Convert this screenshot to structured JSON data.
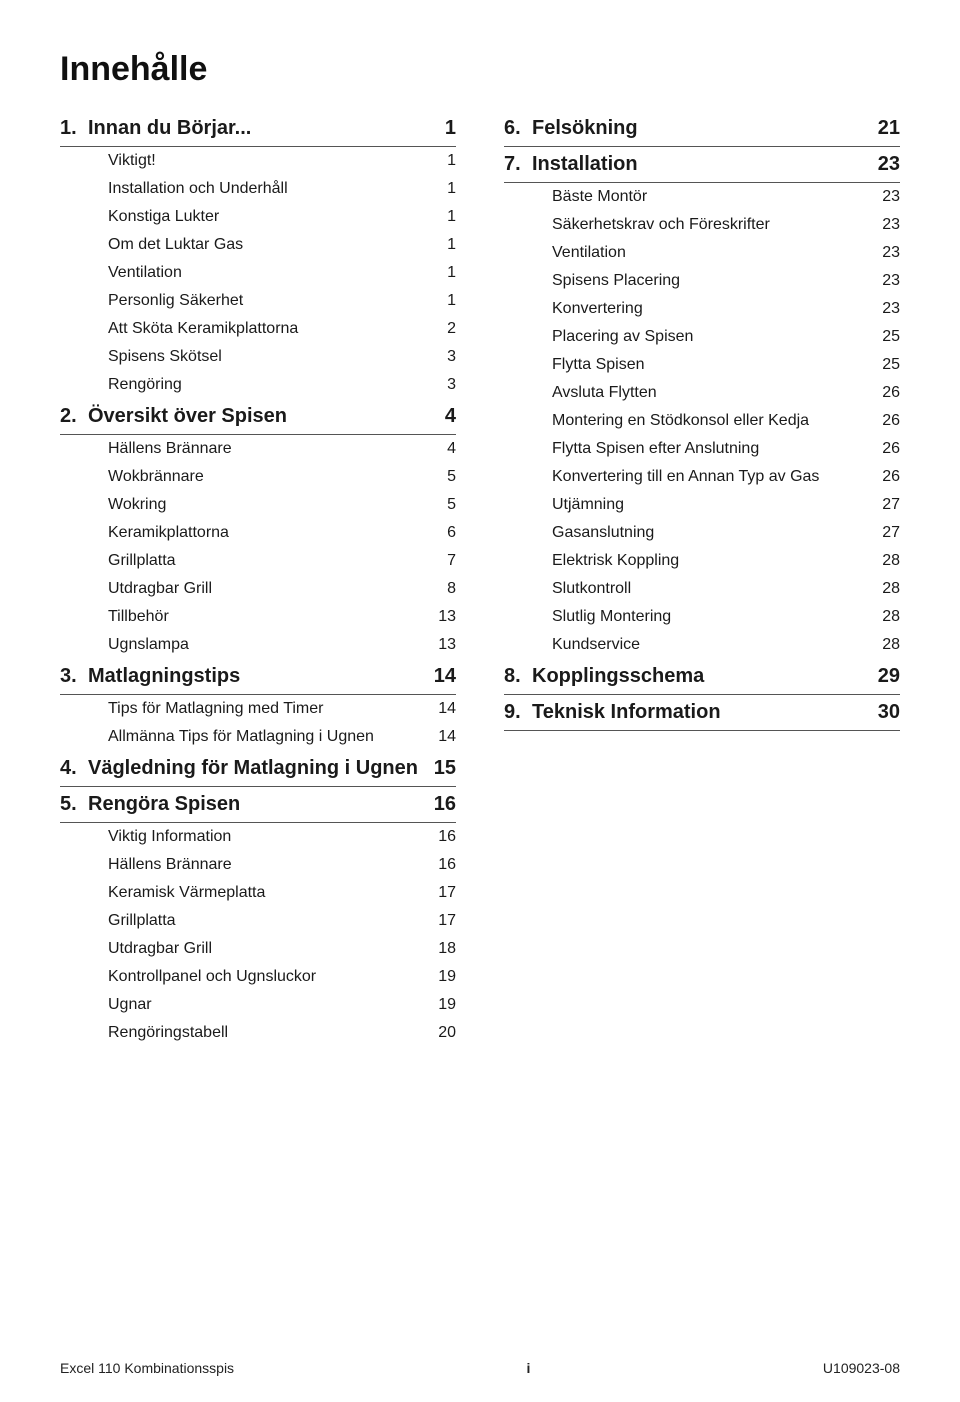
{
  "title": "Innehålle",
  "left": {
    "sections": [
      {
        "num": "1.",
        "label": "Innan du Börjar...",
        "page": "1",
        "items": [
          {
            "label": "Viktigt!",
            "page": "1"
          },
          {
            "label": "Installation och Underhåll",
            "page": "1"
          },
          {
            "label": "Konstiga Lukter",
            "page": "1"
          },
          {
            "label": "Om det Luktar Gas",
            "page": "1"
          },
          {
            "label": "Ventilation",
            "page": "1"
          },
          {
            "label": "Personlig Säkerhet",
            "page": "1"
          },
          {
            "label": "Att Sköta Keramikplattorna",
            "page": "2"
          },
          {
            "label": "Spisens Skötsel",
            "page": "3"
          },
          {
            "label": "Rengöring",
            "page": "3"
          }
        ]
      },
      {
        "num": "2.",
        "label": "Översikt över Spisen",
        "page": "4",
        "items": [
          {
            "label": "Hällens Brännare",
            "page": "4"
          },
          {
            "label": "Wokbrännare",
            "page": "5"
          },
          {
            "label": "Wokring",
            "page": "5"
          },
          {
            "label": "Keramikplattorna",
            "page": "6"
          },
          {
            "label": "Grillplatta",
            "page": "7"
          },
          {
            "label": "Utdragbar Grill",
            "page": "8"
          },
          {
            "label": "Tillbehör",
            "page": "13"
          },
          {
            "label": "Ugnslampa",
            "page": "13"
          }
        ]
      },
      {
        "num": "3.",
        "label": "Matlagningstips",
        "page": "14",
        "items": [
          {
            "label": "Tips för Matlagning med Timer",
            "page": "14"
          },
          {
            "label": "Allmänna Tips för Matlagning i Ugnen",
            "page": "14"
          }
        ]
      },
      {
        "num": "4.",
        "label": "Vägledning för Matlagning i Ugnen",
        "page": "15",
        "items": []
      },
      {
        "num": "5.",
        "label": "Rengöra Spisen",
        "page": "16",
        "items": [
          {
            "label": "Viktig Information",
            "page": "16"
          },
          {
            "label": "Hällens Brännare",
            "page": "16"
          },
          {
            "label": "Keramisk Värmeplatta",
            "page": "17"
          },
          {
            "label": "Grillplatta",
            "page": "17"
          },
          {
            "label": "Utdragbar Grill",
            "page": "18"
          },
          {
            "label": "Kontrollpanel och Ugnsluckor",
            "page": "19"
          },
          {
            "label": "Ugnar",
            "page": "19"
          },
          {
            "label": "Rengöringstabell",
            "page": "20"
          }
        ]
      }
    ]
  },
  "right": {
    "sections": [
      {
        "num": "6.",
        "label": "Felsökning",
        "page": "21",
        "items": []
      },
      {
        "num": "7.",
        "label": "Installation",
        "page": "23",
        "items": [
          {
            "label": "Bäste Montör",
            "page": "23"
          },
          {
            "label": "Säkerhetskrav och Föreskrifter",
            "page": "23"
          },
          {
            "label": "Ventilation",
            "page": "23"
          },
          {
            "label": "Spisens Placering",
            "page": "23"
          },
          {
            "label": "Konvertering",
            "page": "23"
          },
          {
            "label": "Placering av Spisen",
            "page": "25"
          },
          {
            "label": "Flytta Spisen",
            "page": "25"
          },
          {
            "label": "Avsluta Flytten",
            "page": "26"
          },
          {
            "label": "Montering en Stödkonsol eller Kedja",
            "page": "26"
          },
          {
            "label": "Flytta Spisen efter Anslutning",
            "page": "26"
          },
          {
            "label": "Konvertering till en Annan Typ av Gas",
            "page": "26"
          },
          {
            "label": "Utjämning",
            "page": "27"
          },
          {
            "label": "Gasanslutning",
            "page": "27"
          },
          {
            "label": "Elektrisk Koppling",
            "page": "28"
          },
          {
            "label": "Slutkontroll",
            "page": "28"
          },
          {
            "label": "Slutlig Montering",
            "page": "28"
          },
          {
            "label": "Kundservice",
            "page": "28"
          }
        ]
      },
      {
        "num": "8.",
        "label": "Kopplingsschema",
        "page": "29",
        "items": []
      },
      {
        "num": "9.",
        "label": "Teknisk Information",
        "page": "30",
        "items": []
      }
    ]
  },
  "footer": {
    "left": "Excel 110 Kombinationsspis",
    "center": "i",
    "right": "U109023-08"
  }
}
